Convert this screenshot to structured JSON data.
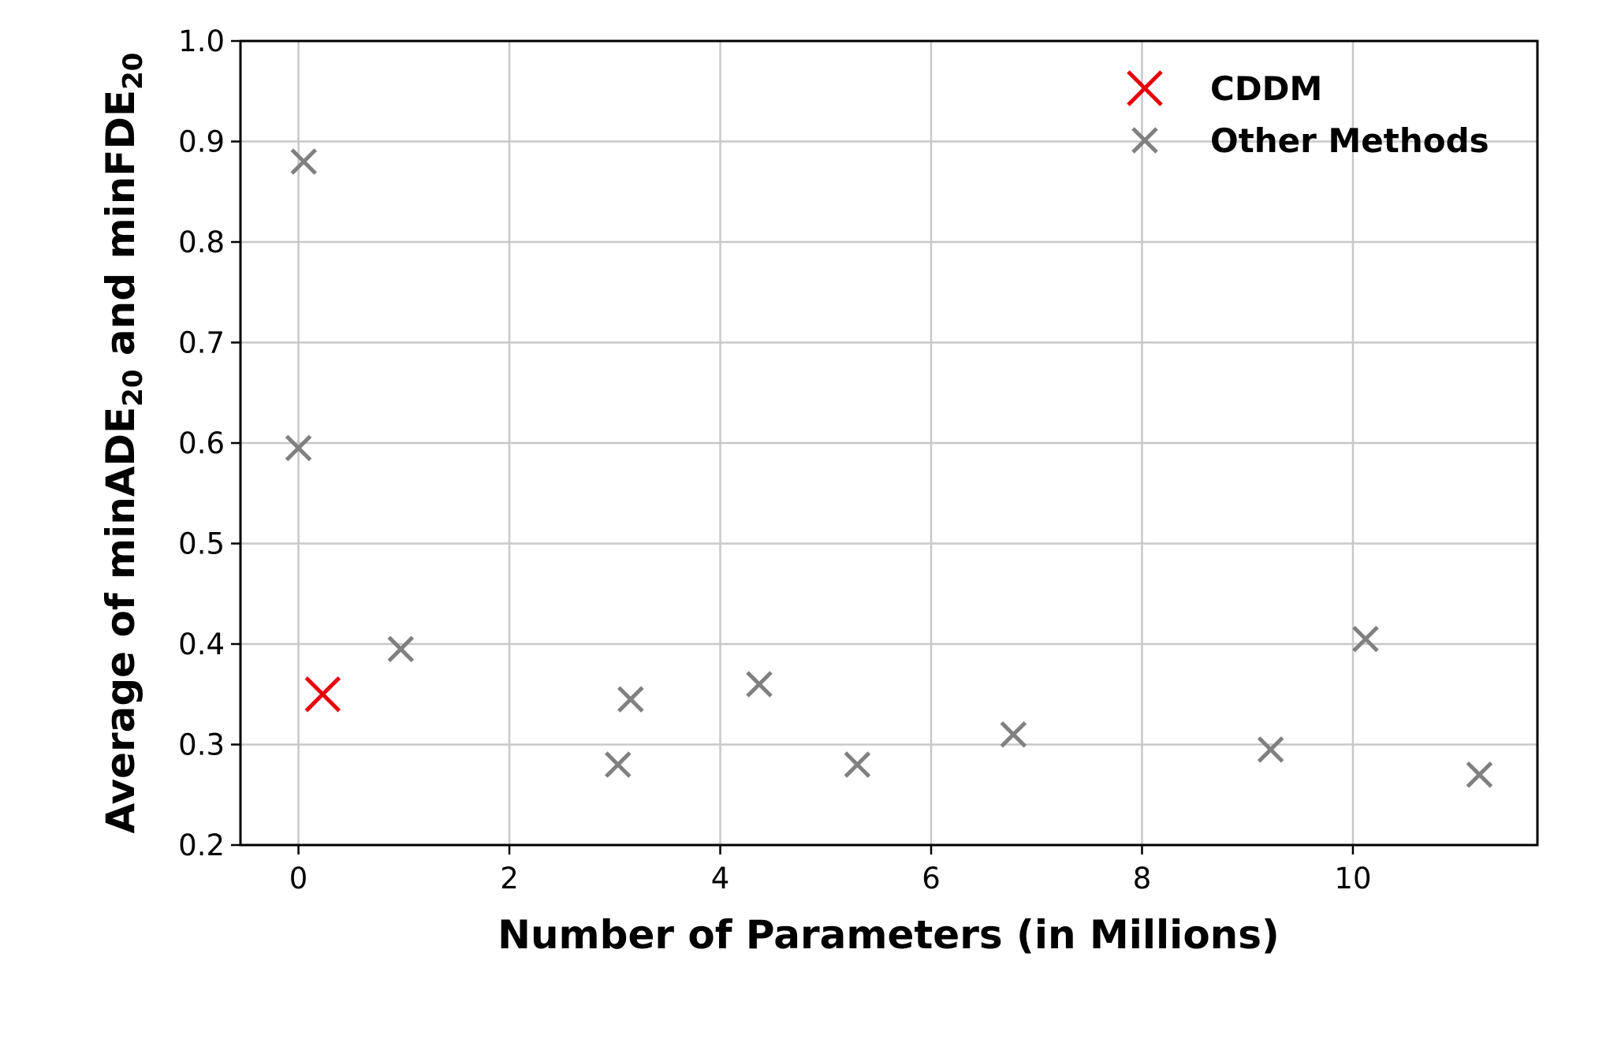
{
  "chart_data": {
    "type": "scatter",
    "title": "",
    "xlabel": "Number of Parameters (in Millions)",
    "ylabel": {
      "parts": [
        {
          "text": "Average of minADE",
          "sub": false
        },
        {
          "text": "20",
          "sub": true
        },
        {
          "text": " and minFDE",
          "sub": false
        },
        {
          "text": "20",
          "sub": true
        }
      ]
    },
    "xlim": [
      -0.55,
      11.75
    ],
    "ylim": [
      0.2,
      1.0
    ],
    "xticks": [
      0,
      2,
      4,
      6,
      8,
      10
    ],
    "yticks": [
      0.2,
      0.3,
      0.4,
      0.5,
      0.6,
      0.7,
      0.8,
      0.9,
      1.0
    ],
    "xtick_labels": [
      "0",
      "2",
      "4",
      "6",
      "8",
      "10"
    ],
    "ytick_labels": [
      "0.2",
      "0.3",
      "0.4",
      "0.5",
      "0.6",
      "0.7",
      "0.8",
      "0.9",
      "1.0"
    ],
    "grid": true,
    "legend_position": "top-right",
    "marker": "x",
    "series": [
      {
        "name": "CDDM",
        "color": "#e8000b",
        "points": [
          {
            "x": 0.23,
            "y": 0.35
          }
        ]
      },
      {
        "name": "Other Methods",
        "color": "#808080",
        "points": [
          {
            "x": 0.05,
            "y": 0.88
          },
          {
            "x": 0.0,
            "y": 0.595
          },
          {
            "x": 0.97,
            "y": 0.395
          },
          {
            "x": 3.03,
            "y": 0.28
          },
          {
            "x": 3.15,
            "y": 0.345
          },
          {
            "x": 4.37,
            "y": 0.36
          },
          {
            "x": 5.3,
            "y": 0.28
          },
          {
            "x": 6.78,
            "y": 0.31
          },
          {
            "x": 9.22,
            "y": 0.295
          },
          {
            "x": 10.12,
            "y": 0.405
          },
          {
            "x": 11.2,
            "y": 0.27
          }
        ]
      }
    ]
  }
}
